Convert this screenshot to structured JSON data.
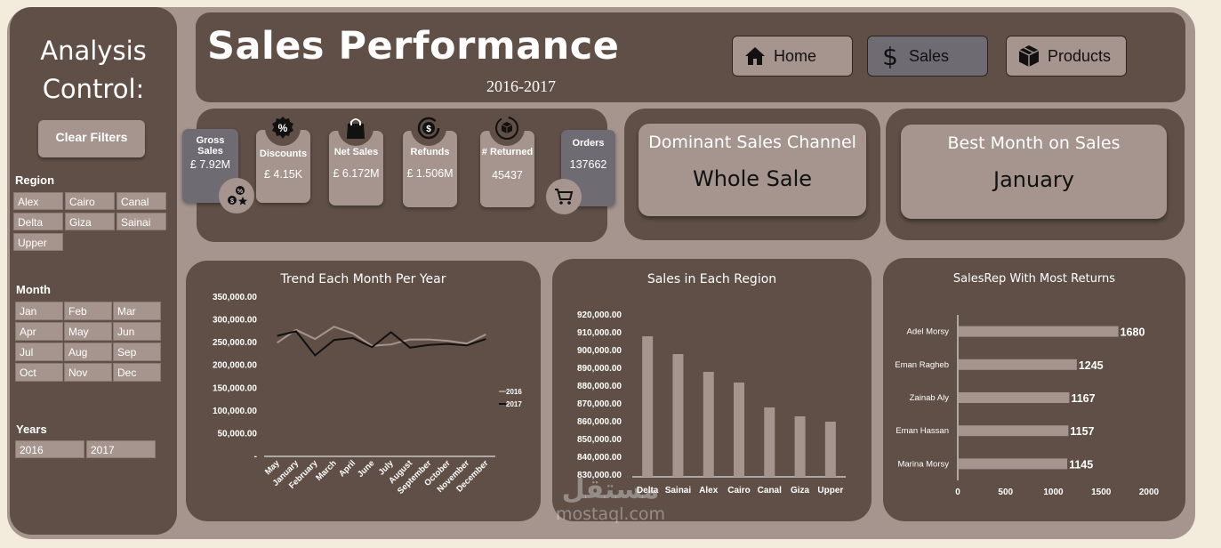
{
  "sidebar": {
    "title_line1": "Analysis",
    "title_line2": "Control:",
    "clear_filters": "Clear Filters",
    "region": {
      "title": "Region",
      "items": [
        "Alex",
        "Cairo",
        "Canal",
        "Delta",
        "Giza",
        "Sainai",
        "Upper"
      ]
    },
    "month": {
      "title": "Month",
      "items": [
        "Jan",
        "Feb",
        "Mar",
        "Apr",
        "May",
        "Jun",
        "Jul",
        "Aug",
        "Sep",
        "Oct",
        "Nov",
        "Dec"
      ]
    },
    "years": {
      "title": "Years",
      "items": [
        "2016",
        "2017"
      ]
    }
  },
  "header": {
    "title": "Sales Performance",
    "subtitle": "2016-2017",
    "nav": [
      {
        "label": "Home",
        "icon": "home-icon",
        "active": false
      },
      {
        "label": "Sales",
        "icon": "dollar-icon",
        "active": true
      },
      {
        "label": "Products",
        "icon": "box-icon",
        "active": false
      }
    ]
  },
  "kpis": {
    "gross_sales": {
      "label": "Gross Sales",
      "value": "£ 7.92M"
    },
    "discounts": {
      "label": "Discounts",
      "value": "£ 4.15K"
    },
    "net_sales": {
      "label": "Net Sales",
      "value": "£ 6.172M"
    },
    "refunds": {
      "label": "Refunds",
      "value": "£ 1.506M"
    },
    "returned": {
      "label": "# Returned",
      "value": "45437"
    },
    "orders": {
      "label": "Orders",
      "value": "137662"
    }
  },
  "dominant_channel": {
    "title": "Dominant Sales Channel",
    "value": "Whole Sale"
  },
  "best_month": {
    "title": "Best Month on Sales",
    "value": "January"
  },
  "colors": {
    "panel": "#5f4f47",
    "card": "#a5958e",
    "frame": "#a5958e",
    "background": "#f3ebdc",
    "active_card": "#6e6b73",
    "series_2016": "#a5958e",
    "series_2017": "#111111"
  },
  "chart_data": [
    {
      "type": "line",
      "title": "Trend Each Month Per Year",
      "categories": [
        "May",
        "January",
        "February",
        "March",
        "April",
        "June",
        "July",
        "August",
        "September",
        "October",
        "November",
        "December"
      ],
      "yticks": [
        "350,000.00",
        "300,000.00",
        "250,000.00",
        "200,000.00",
        "150,000.00",
        "100,000.00",
        "50,000.00",
        "-"
      ],
      "ylim": [
        0,
        350000
      ],
      "series": [
        {
          "name": "2016",
          "values": [
            250000,
            278000,
            258000,
            285000,
            270000,
            243000,
            246000,
            257000,
            257000,
            254000,
            248000,
            268000
          ]
        },
        {
          "name": "2017",
          "values": [
            265000,
            275000,
            222000,
            256000,
            260000,
            240000,
            273000,
            239000,
            245000,
            247000,
            244000,
            258000
          ]
        }
      ],
      "legend": "right"
    },
    {
      "type": "bar",
      "title": "Sales in Each Region",
      "categories": [
        "Delta",
        "Sainai",
        "Alex",
        "Cairo",
        "Canal",
        "Giza",
        "Upper"
      ],
      "values": [
        908000,
        898000,
        888000,
        882000,
        868000,
        863000,
        860000
      ],
      "yticks": [
        "920,000.00",
        "910,000.00",
        "900,000.00",
        "890,000.00",
        "880,000.00",
        "870,000.00",
        "860,000.00",
        "850,000.00",
        "840,000.00",
        "830,000.00"
      ],
      "ylim": [
        830000,
        920000
      ]
    },
    {
      "type": "bar",
      "orientation": "horizontal",
      "title": "SalesRep With Most Returns",
      "categories": [
        "Adel Morsy",
        "Eman Ragheb",
        "Zainab Aly",
        "Eman Hassan",
        "Marina Morsy"
      ],
      "values": [
        1680,
        1245,
        1167,
        1157,
        1145
      ],
      "value_labels": [
        "1680",
        "1245",
        "1167",
        "1157",
        "1145"
      ],
      "xticks": [
        "0",
        "500",
        "1000",
        "1500",
        "2000"
      ],
      "xlim": [
        0,
        2000
      ]
    }
  ],
  "watermark": {
    "arabic": "مستقل",
    "latin": "mostaql.com"
  }
}
